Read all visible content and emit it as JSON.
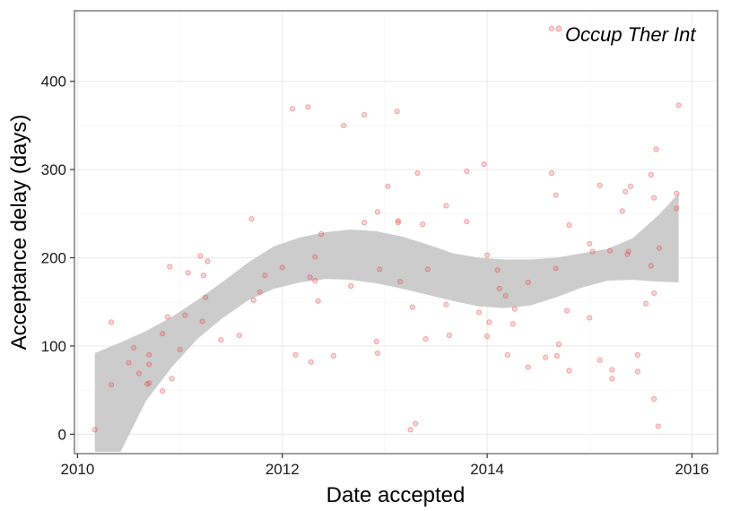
{
  "chart_data": {
    "type": "scatter",
    "xlabel": "Date accepted",
    "ylabel": "Acceptance delay (days)",
    "x_axis": "date",
    "xlim": [
      2009.97,
      2016.25
    ],
    "ylim": [
      -22,
      480
    ],
    "xticks": [
      2010,
      2012,
      2014,
      2016
    ],
    "xtick_labels": [
      "2010",
      "2012",
      "2014",
      "2016"
    ],
    "yticks": [
      0,
      100,
      200,
      300,
      400
    ],
    "ytick_labels": [
      "0",
      "100",
      "200",
      "300",
      "400"
    ],
    "grid": true,
    "legend_position": "top-right",
    "point_color": "#e8474a",
    "band_color": "#cccccc",
    "series": [
      {
        "name": "Occup Ther Int",
        "points": [
          [
            2010.17,
            5
          ],
          [
            2010.33,
            127
          ],
          [
            2010.33,
            56
          ],
          [
            2010.5,
            81
          ],
          [
            2010.55,
            98
          ],
          [
            2010.6,
            69
          ],
          [
            2010.68,
            57
          ],
          [
            2010.7,
            79
          ],
          [
            2010.7,
            90
          ],
          [
            2010.7,
            58
          ],
          [
            2010.83,
            49
          ],
          [
            2010.83,
            114
          ],
          [
            2010.88,
            133
          ],
          [
            2010.9,
            190
          ],
          [
            2010.92,
            63
          ],
          [
            2011.0,
            96
          ],
          [
            2011.05,
            135
          ],
          [
            2011.08,
            183
          ],
          [
            2011.2,
            202
          ],
          [
            2011.22,
            128
          ],
          [
            2011.23,
            180
          ],
          [
            2011.25,
            155
          ],
          [
            2011.27,
            196
          ],
          [
            2011.4,
            107
          ],
          [
            2011.58,
            112
          ],
          [
            2011.7,
            244
          ],
          [
            2011.72,
            152
          ],
          [
            2011.78,
            161
          ],
          [
            2011.83,
            180
          ],
          [
            2012.0,
            189
          ],
          [
            2012.1,
            369
          ],
          [
            2012.13,
            90
          ],
          [
            2012.25,
            371
          ],
          [
            2012.27,
            178
          ],
          [
            2012.28,
            82
          ],
          [
            2012.32,
            201
          ],
          [
            2012.32,
            174
          ],
          [
            2012.35,
            151
          ],
          [
            2012.38,
            227
          ],
          [
            2012.5,
            89
          ],
          [
            2012.6,
            350
          ],
          [
            2012.67,
            168
          ],
          [
            2012.8,
            362
          ],
          [
            2012.8,
            240
          ],
          [
            2012.92,
            105
          ],
          [
            2012.93,
            92
          ],
          [
            2012.93,
            252
          ],
          [
            2012.95,
            187
          ],
          [
            2013.03,
            281
          ],
          [
            2013.12,
            366
          ],
          [
            2013.13,
            240
          ],
          [
            2013.13,
            242
          ],
          [
            2013.15,
            173
          ],
          [
            2013.25,
            5
          ],
          [
            2013.27,
            144
          ],
          [
            2013.3,
            12
          ],
          [
            2013.32,
            296
          ],
          [
            2013.37,
            238
          ],
          [
            2013.4,
            108
          ],
          [
            2013.42,
            187
          ],
          [
            2013.6,
            259
          ],
          [
            2013.6,
            147
          ],
          [
            2013.63,
            112
          ],
          [
            2013.8,
            298
          ],
          [
            2013.8,
            241
          ],
          [
            2013.92,
            138
          ],
          [
            2013.97,
            306
          ],
          [
            2014.0,
            111
          ],
          [
            2014.0,
            203
          ],
          [
            2014.02,
            127
          ],
          [
            2014.1,
            186
          ],
          [
            2014.12,
            165
          ],
          [
            2014.18,
            157
          ],
          [
            2014.2,
            90
          ],
          [
            2014.25,
            125
          ],
          [
            2014.27,
            142
          ],
          [
            2014.4,
            76
          ],
          [
            2014.4,
            172
          ],
          [
            2014.57,
            87
          ],
          [
            2014.63,
            460
          ],
          [
            2014.63,
            296
          ],
          [
            2014.67,
            271
          ],
          [
            2014.67,
            188
          ],
          [
            2014.68,
            89
          ],
          [
            2014.7,
            102
          ],
          [
            2014.78,
            140
          ],
          [
            2014.8,
            237
          ],
          [
            2014.8,
            72
          ],
          [
            2015.0,
            216
          ],
          [
            2015.0,
            132
          ],
          [
            2015.03,
            207
          ],
          [
            2015.1,
            282
          ],
          [
            2015.1,
            84
          ],
          [
            2015.2,
            208
          ],
          [
            2015.22,
            73
          ],
          [
            2015.22,
            63
          ],
          [
            2015.32,
            253
          ],
          [
            2015.35,
            275
          ],
          [
            2015.37,
            204
          ],
          [
            2015.38,
            207
          ],
          [
            2015.4,
            281
          ],
          [
            2015.47,
            90
          ],
          [
            2015.47,
            71
          ],
          [
            2015.55,
            148
          ],
          [
            2015.6,
            294
          ],
          [
            2015.6,
            191
          ],
          [
            2015.63,
            40
          ],
          [
            2015.63,
            160
          ],
          [
            2015.63,
            268
          ],
          [
            2015.65,
            323
          ],
          [
            2015.67,
            9
          ],
          [
            2015.68,
            211
          ],
          [
            2015.85,
            273
          ],
          [
            2015.85,
            256
          ],
          [
            2015.87,
            373
          ]
        ]
      }
    ],
    "smooth_band": {
      "x": [
        2010.17,
        2010.42,
        2010.67,
        2010.92,
        2011.17,
        2011.42,
        2011.67,
        2011.92,
        2012.17,
        2012.42,
        2012.67,
        2012.92,
        2013.17,
        2013.42,
        2013.67,
        2013.92,
        2014.17,
        2014.42,
        2014.67,
        2014.92,
        2015.17,
        2015.42,
        2015.67,
        2015.87
      ],
      "upper": [
        92,
        104,
        117,
        133,
        152,
        173,
        195,
        213,
        223,
        229,
        232,
        230,
        224,
        215,
        205,
        200,
        198,
        198,
        200,
        205,
        210,
        222,
        248,
        273
      ],
      "lower": [
        -20,
        -20,
        38,
        76,
        108,
        132,
        152,
        165,
        172,
        176,
        175,
        171,
        165,
        158,
        151,
        145,
        143,
        146,
        155,
        166,
        174,
        175,
        173,
        172
      ]
    }
  }
}
